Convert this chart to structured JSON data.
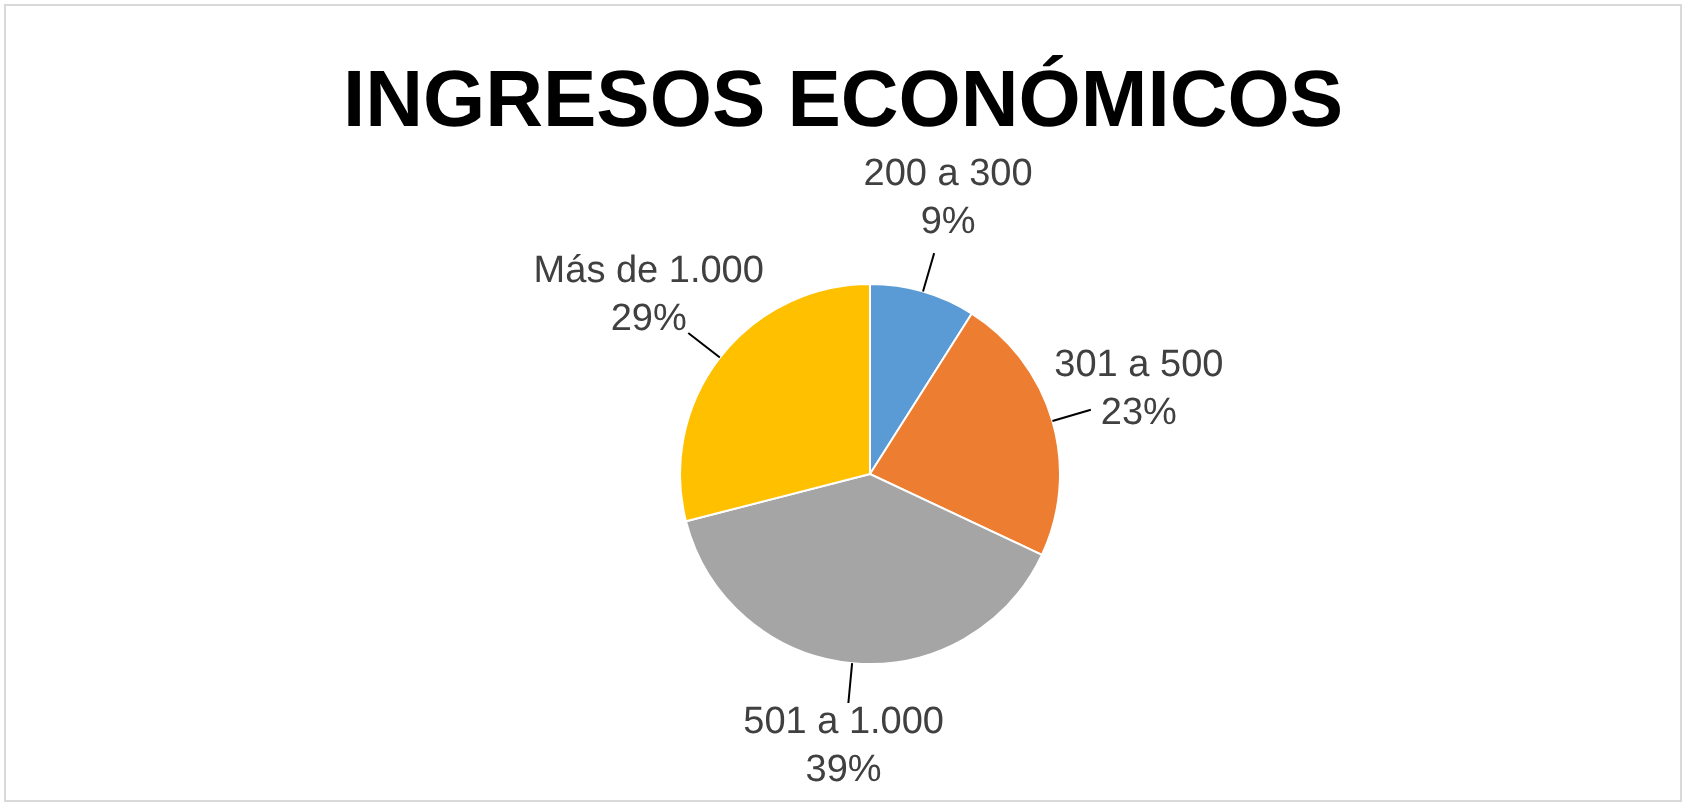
{
  "chart_data": {
    "type": "pie",
    "title": "INGRESOS ECONÓMICOS",
    "categories": [
      "200 a 300",
      "301 a 500",
      "501 a 1.000",
      "Más de 1.000"
    ],
    "values": [
      9,
      23,
      39,
      29
    ],
    "value_labels": [
      "9%",
      "23%",
      "39%",
      "29%"
    ],
    "colors": [
      "#5b9bd5",
      "#ed7d31",
      "#a5a5a5",
      "#ffc000"
    ]
  }
}
